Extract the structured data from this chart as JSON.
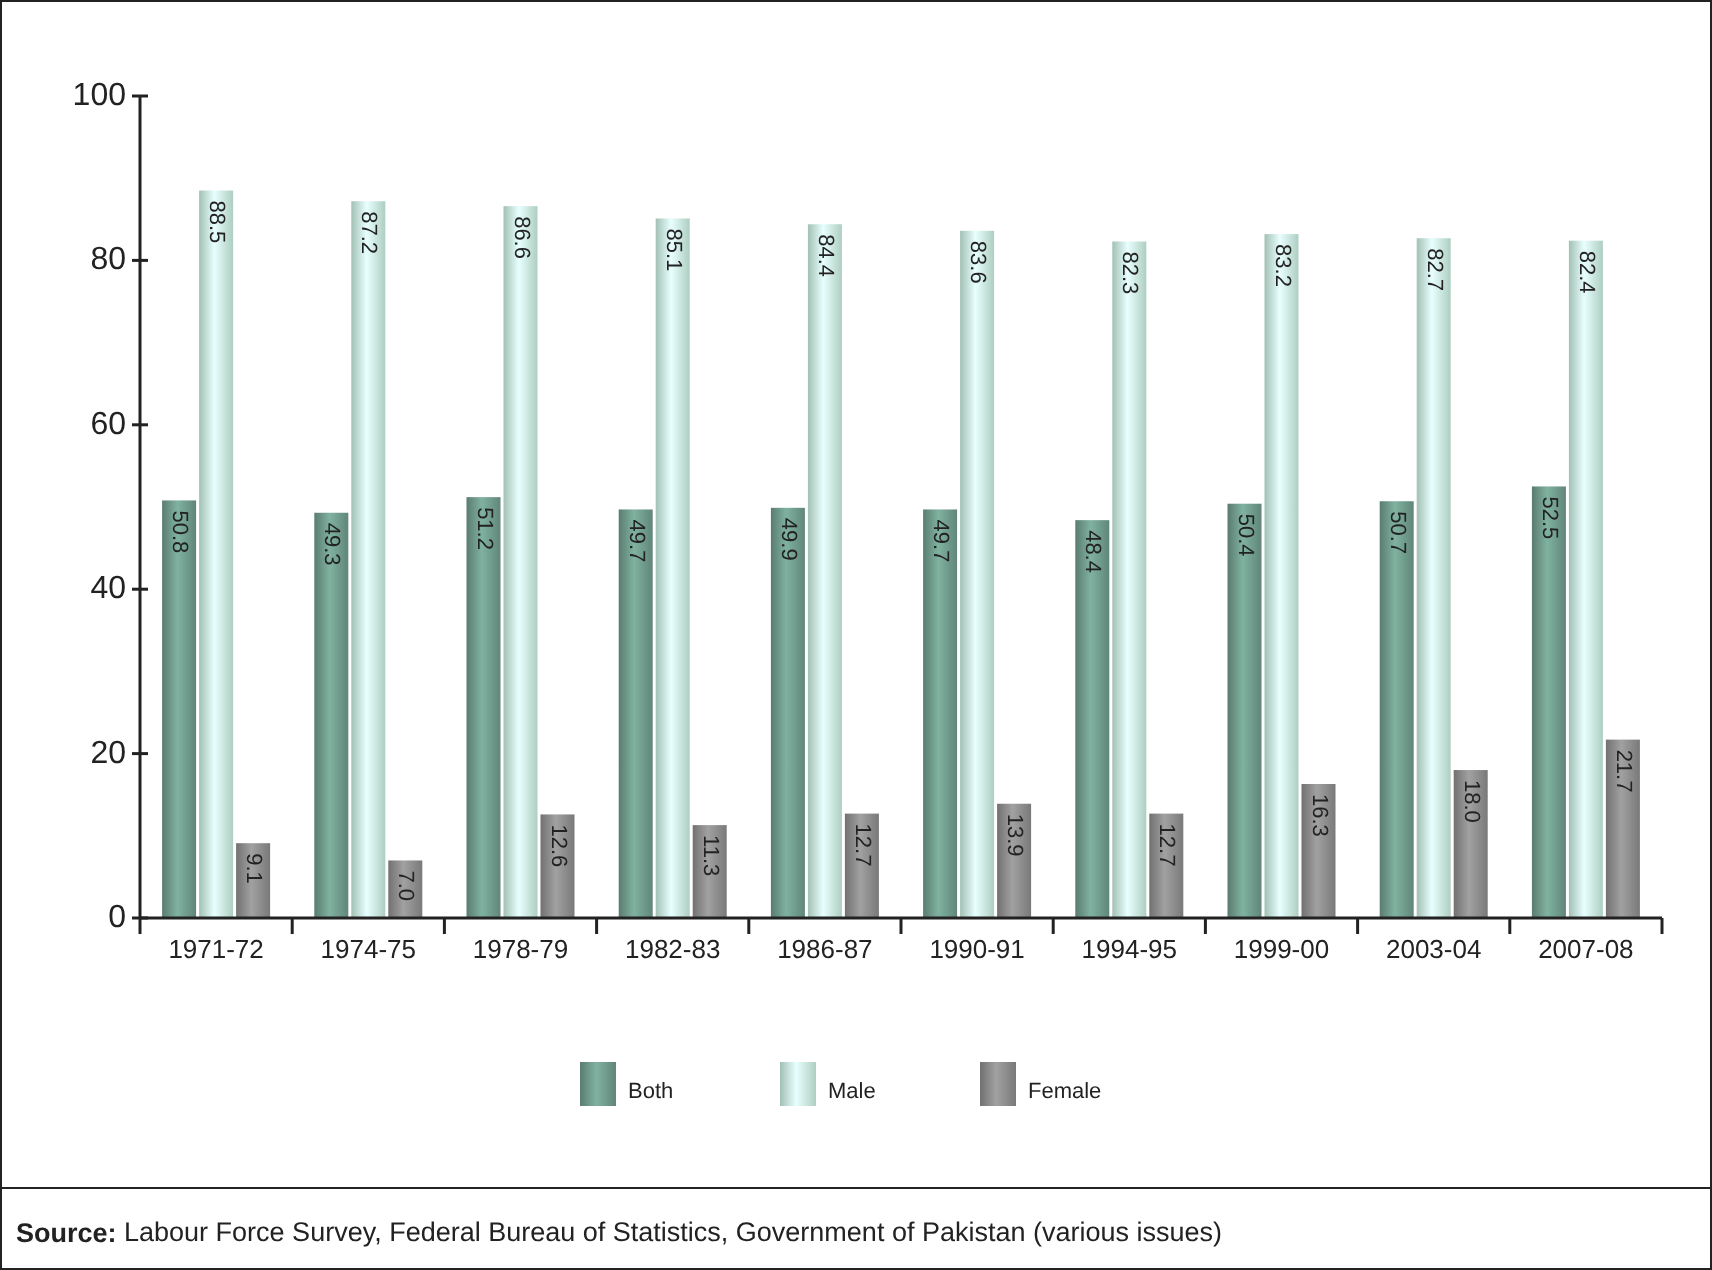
{
  "chart_data": {
    "type": "bar",
    "categories": [
      "1971-72",
      "1974-75",
      "1978-79",
      "1982-83",
      "1986-87",
      "1990-91",
      "1994-95",
      "1999-00",
      "2003-04",
      "2007-08"
    ],
    "series": [
      {
        "name": "Both",
        "color": "#6f9a8b",
        "values": [
          50.8,
          49.3,
          51.2,
          49.7,
          49.9,
          49.7,
          48.4,
          50.4,
          50.7,
          52.5
        ]
      },
      {
        "name": "Male",
        "color": "#c9eedf",
        "values": [
          88.5,
          87.2,
          86.6,
          85.1,
          84.4,
          83.6,
          82.3,
          83.2,
          82.7,
          82.4
        ]
      },
      {
        "name": "Female",
        "color": "#8c8c8c",
        "values": [
          9.1,
          7.0,
          12.6,
          11.3,
          12.7,
          13.9,
          12.7,
          16.3,
          18.0,
          21.7
        ],
        "value_labels": [
          "9.1",
          "7.0",
          "12.6",
          "11.3",
          "12.7",
          "13.9",
          "12.7",
          "16.3",
          "18.0",
          "21.7"
        ]
      }
    ],
    "ylim": [
      0,
      100
    ],
    "yticks": [
      0,
      20,
      40,
      60,
      80,
      100
    ],
    "grid": false,
    "legend": "bottom",
    "data_labels": true,
    "annotations": [
      "Source: Labour Force Survey, Federal Bureau of Statistics, Government of Pakistan (various issues)"
    ]
  }
}
